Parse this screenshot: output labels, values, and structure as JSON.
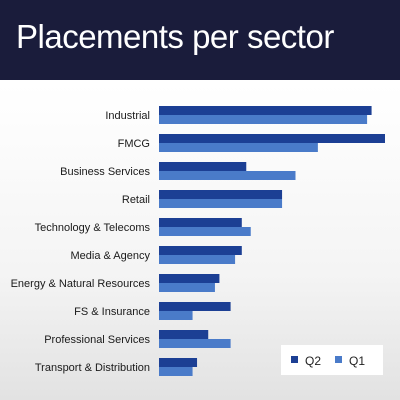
{
  "header": {
    "title": "Placements per sector"
  },
  "colors": {
    "header_bg": "#1a1c3b",
    "q2": "#1c3f94",
    "q1": "#4a7bc9"
  },
  "chart_data": {
    "type": "bar",
    "orientation": "horizontal",
    "title": "Placements per sector",
    "categories": [
      "Industrial",
      "FMCG",
      "Business Services",
      "Retail",
      "Technology & Telecoms",
      "Media & Agency",
      "Energy & Natural Resources",
      "FS & Insurance",
      "Professional Services",
      "Transport & Distribution"
    ],
    "series": [
      {
        "name": "Q2",
        "values": [
          95,
          101,
          39,
          55,
          37,
          37,
          27,
          32,
          22,
          17
        ]
      },
      {
        "name": "Q1",
        "values": [
          93,
          71,
          61,
          55,
          41,
          34,
          25,
          15,
          32,
          15
        ]
      }
    ],
    "xlim": [
      0,
      101
    ],
    "grid": false,
    "legend": "bottom-right"
  }
}
